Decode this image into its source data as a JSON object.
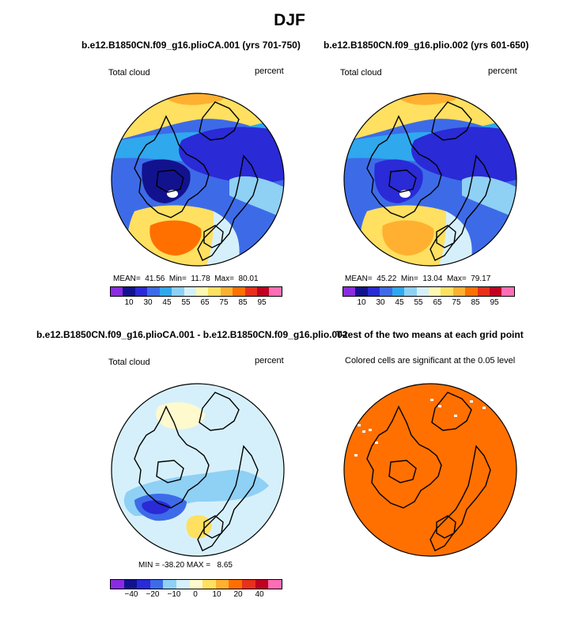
{
  "title": "DJF",
  "panels": [
    {
      "id": "p1",
      "title": "b.e12.B1850CN.f09_g16.plioCA.001 (yrs 701-750)",
      "left_label": "Total cloud",
      "right_label": "percent",
      "stats": "MEAN=  41.56  Min=  11.78  Max=  80.01",
      "colorbar": [
        "#8a2be2",
        "#12128f",
        "#2a2ad6",
        "#3d6be8",
        "#2fa8ee",
        "#8fd0f5",
        "#d6f0fb",
        "#fff8b0",
        "#ffe060",
        "#ffb030",
        "#ff7000",
        "#e8301a",
        "#c00020",
        "#ff6eb4"
      ],
      "tick_labels": [
        "10",
        "30",
        "45",
        "55",
        "65",
        "75",
        "85",
        "95"
      ]
    },
    {
      "id": "p2",
      "title": "b.e12.B1850CN.f09_g16.plio.002 (yrs 601-650)",
      "left_label": "Total cloud",
      "right_label": "percent",
      "stats": "MEAN=  45.22  Min=  13.04  Max=  79.17",
      "colorbar": [
        "#8a2be2",
        "#12128f",
        "#2a2ad6",
        "#3d6be8",
        "#2fa8ee",
        "#8fd0f5",
        "#d6f0fb",
        "#fff8b0",
        "#ffe060",
        "#ffb030",
        "#ff7000",
        "#e8301a",
        "#c00020",
        "#ff6eb4"
      ],
      "tick_labels": [
        "10",
        "30",
        "45",
        "55",
        "65",
        "75",
        "85",
        "95"
      ]
    },
    {
      "id": "p3",
      "title": "b.e12.B1850CN.f09_g16.plioCA.001 - b.e12.B1850CN.f09_g16.plio.002",
      "left_label": "Total cloud",
      "right_label": "percent",
      "stats": "MIN = -38.20 MAX =   8.65",
      "colorbar": [
        "#8a2be2",
        "#12128f",
        "#2a2ad6",
        "#3d6be8",
        "#8fd0f5",
        "#d6f0fb",
        "#fffacd",
        "#ffe060",
        "#ffb030",
        "#ff7000",
        "#e8301a",
        "#c00020",
        "#ff6eb4"
      ],
      "tick_labels": [
        "−40",
        "−20",
        "−10",
        "0",
        "10",
        "20",
        "40"
      ]
    },
    {
      "id": "p4",
      "title": "T-test of the two means at each grid point",
      "left_label": "Colored cells are significant at the 0.05 level"
    }
  ],
  "chart_data": [
    {
      "type": "heatmap",
      "title": "b.e12.B1850CN.f09_g16.plioCA.001 (yrs 701-750)",
      "variable": "Total cloud",
      "units": "percent",
      "projection": "north polar stereographic",
      "season": "DJF",
      "mean": 41.56,
      "min": 11.78,
      "max": 80.01,
      "colorbar_levels": [
        10,
        15,
        20,
        25,
        30,
        35,
        40,
        45,
        50,
        55,
        60,
        65,
        70,
        75,
        80,
        85,
        90,
        95
      ],
      "colorbar_tick_labels": [
        "10",
        "30",
        "45",
        "55",
        "65",
        "75",
        "85",
        "95"
      ]
    },
    {
      "type": "heatmap",
      "title": "b.e12.B1850CN.f09_g16.plio.002 (yrs 601-650)",
      "variable": "Total cloud",
      "units": "percent",
      "projection": "north polar stereographic",
      "season": "DJF",
      "mean": 45.22,
      "min": 13.04,
      "max": 79.17,
      "colorbar_levels": [
        10,
        15,
        20,
        25,
        30,
        35,
        40,
        45,
        50,
        55,
        60,
        65,
        70,
        75,
        80,
        85,
        90,
        95
      ],
      "colorbar_tick_labels": [
        "10",
        "30",
        "45",
        "55",
        "65",
        "75",
        "85",
        "95"
      ]
    },
    {
      "type": "heatmap",
      "title": "b.e12.B1850CN.f09_g16.plioCA.001 - b.e12.B1850CN.f09_g16.plio.002",
      "variable": "Total cloud",
      "units": "percent",
      "projection": "north polar stereographic",
      "season": "DJF",
      "min": -38.2,
      "max": 8.65,
      "colorbar_levels": [
        -40,
        -30,
        -20,
        -15,
        -10,
        -5,
        0,
        5,
        10,
        15,
        20,
        30,
        40
      ],
      "colorbar_tick_labels": [
        "-40",
        "-20",
        "-10",
        "0",
        "10",
        "20",
        "40"
      ]
    },
    {
      "type": "heatmap",
      "title": "T-test of the two means at each grid point",
      "description_label": "Colored cells are significant at the 0.05 level",
      "significance_level": 0.05
    }
  ]
}
